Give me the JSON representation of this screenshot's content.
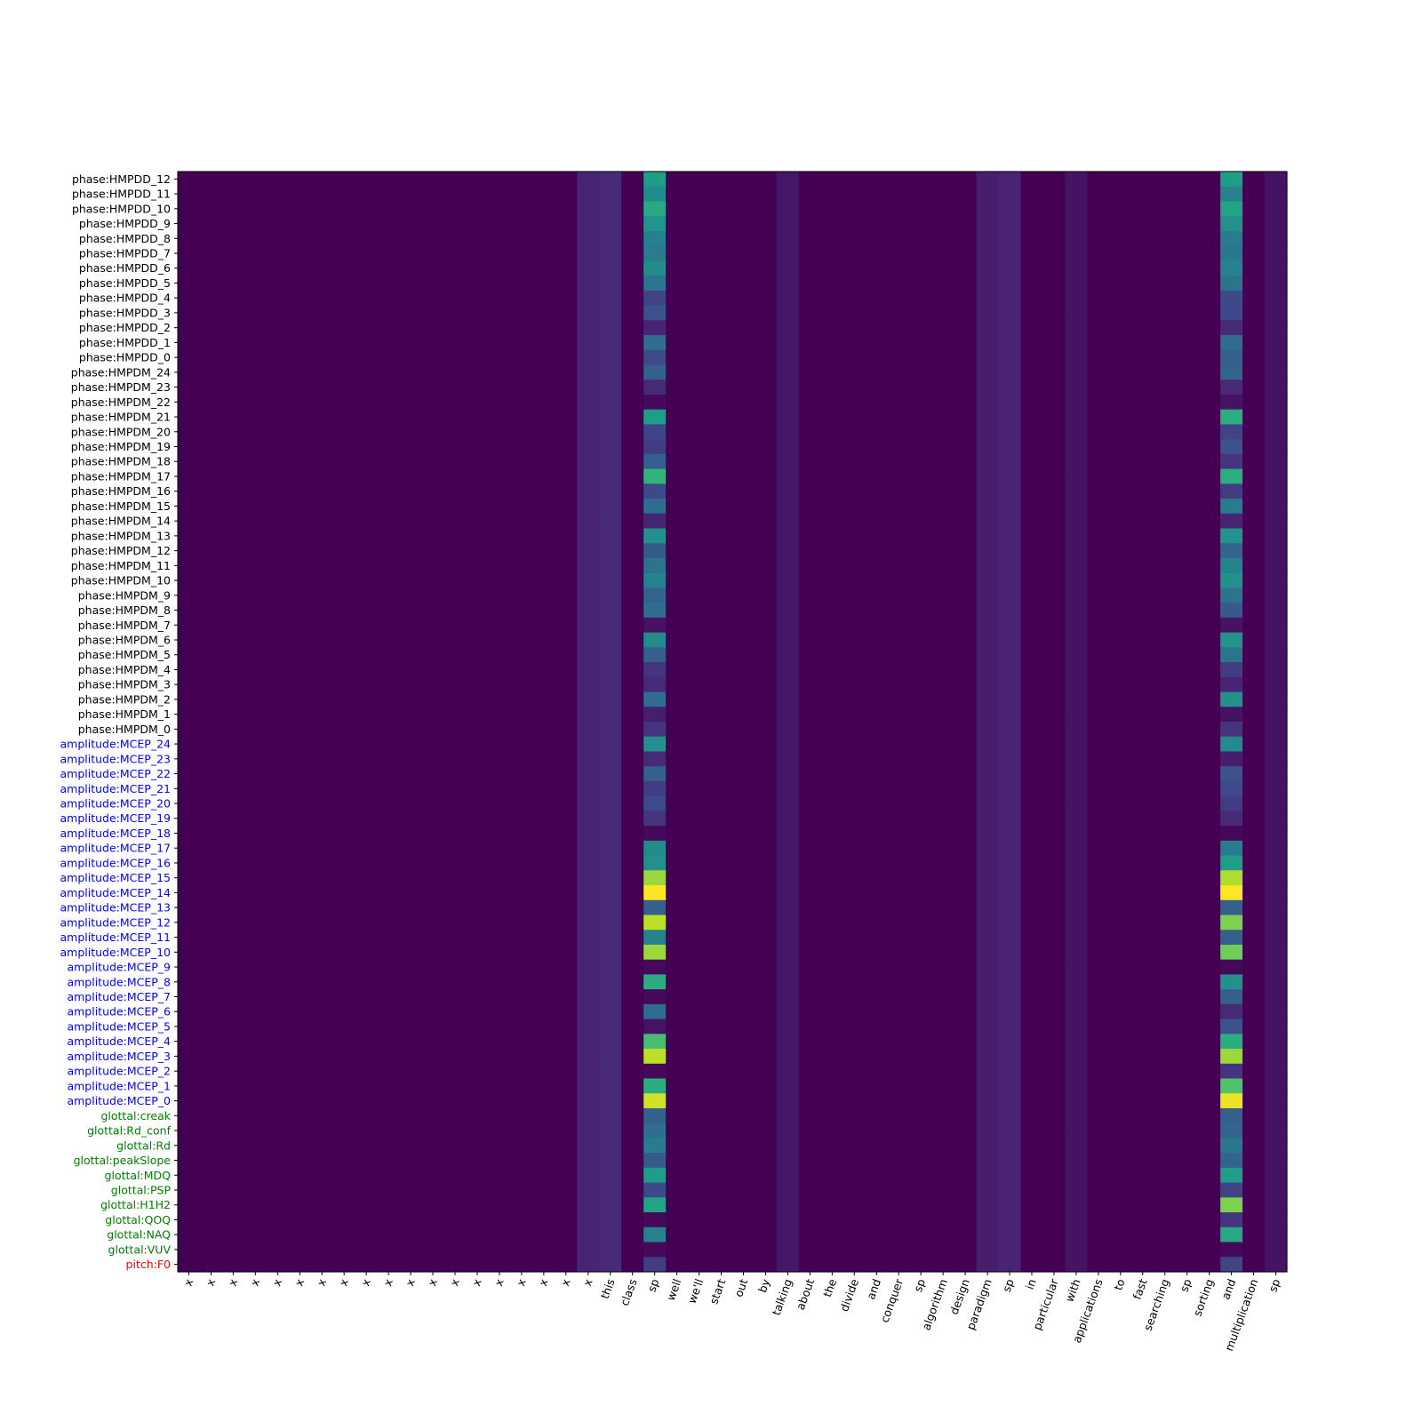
{
  "chart_data": {
    "type": "heatmap",
    "colormap": "viridis",
    "grid": false,
    "x_labels": [
      "x",
      "x",
      "x",
      "x",
      "x",
      "x",
      "x",
      "x",
      "x",
      "x",
      "x",
      "x",
      "x",
      "x",
      "x",
      "x",
      "x",
      "x",
      "x",
      "this",
      "class",
      "sp",
      "well",
      "we'll",
      "start",
      "out",
      "by",
      "talking",
      "about",
      "the",
      "divide",
      "and",
      "conquer",
      "sp",
      "algorithm",
      "design",
      "paradigm",
      "sp",
      "in",
      "particular",
      "with",
      "applications",
      "to",
      "fast",
      "searching",
      "sp",
      "sorting",
      "and",
      "multiplication",
      "sp"
    ],
    "y_labels": [
      "phase:HMPDD_12",
      "phase:HMPDD_11",
      "phase:HMPDD_10",
      "phase:HMPDD_9",
      "phase:HMPDD_8",
      "phase:HMPDD_7",
      "phase:HMPDD_6",
      "phase:HMPDD_5",
      "phase:HMPDD_4",
      "phase:HMPDD_3",
      "phase:HMPDD_2",
      "phase:HMPDD_1",
      "phase:HMPDD_0",
      "phase:HMPDM_24",
      "phase:HMPDM_23",
      "phase:HMPDM_22",
      "phase:HMPDM_21",
      "phase:HMPDM_20",
      "phase:HMPDM_19",
      "phase:HMPDM_18",
      "phase:HMPDM_17",
      "phase:HMPDM_16",
      "phase:HMPDM_15",
      "phase:HMPDM_14",
      "phase:HMPDM_13",
      "phase:HMPDM_12",
      "phase:HMPDM_11",
      "phase:HMPDM_10",
      "phase:HMPDM_9",
      "phase:HMPDM_8",
      "phase:HMPDM_7",
      "phase:HMPDM_6",
      "phase:HMPDM_5",
      "phase:HMPDM_4",
      "phase:HMPDM_3",
      "phase:HMPDM_2",
      "phase:HMPDM_1",
      "phase:HMPDM_0",
      "amplitude:MCEP_24",
      "amplitude:MCEP_23",
      "amplitude:MCEP_22",
      "amplitude:MCEP_21",
      "amplitude:MCEP_20",
      "amplitude:MCEP_19",
      "amplitude:MCEP_18",
      "amplitude:MCEP_17",
      "amplitude:MCEP_16",
      "amplitude:MCEP_15",
      "amplitude:MCEP_14",
      "amplitude:MCEP_13",
      "amplitude:MCEP_12",
      "amplitude:MCEP_11",
      "amplitude:MCEP_10",
      "amplitude:MCEP_9",
      "amplitude:MCEP_8",
      "amplitude:MCEP_7",
      "amplitude:MCEP_6",
      "amplitude:MCEP_5",
      "amplitude:MCEP_4",
      "amplitude:MCEP_3",
      "amplitude:MCEP_2",
      "amplitude:MCEP_1",
      "amplitude:MCEP_0",
      "glottal:creak",
      "glottal:Rd_conf",
      "glottal:Rd",
      "glottal:peakSlope",
      "glottal:MDQ",
      "glottal:PSP",
      "glottal:H1H2",
      "glottal:QOQ",
      "glottal:NAQ",
      "glottal:VUV",
      "pitch:F0"
    ],
    "y_label_colors": {
      "phase": "#000000",
      "amplitude": "#0000ff",
      "glottal": "#008000",
      "pitch": "#ff0000"
    },
    "value_range": [
      0,
      1
    ],
    "peak_columns": [
      {
        "x_index": 21,
        "values": [
          0.55,
          0.48,
          0.6,
          0.52,
          0.44,
          0.42,
          0.48,
          0.38,
          0.2,
          0.25,
          0.1,
          0.35,
          0.22,
          0.3,
          0.12,
          0.02,
          0.55,
          0.2,
          0.18,
          0.3,
          0.65,
          0.22,
          0.35,
          0.1,
          0.5,
          0.28,
          0.38,
          0.45,
          0.32,
          0.35,
          0.05,
          0.48,
          0.3,
          0.15,
          0.12,
          0.35,
          0.08,
          0.15,
          0.5,
          0.12,
          0.3,
          0.18,
          0.22,
          0.15,
          0.02,
          0.48,
          0.5,
          0.85,
          1.0,
          0.3,
          0.9,
          0.45,
          0.85,
          0.02,
          0.62,
          0.02,
          0.35,
          0.05,
          0.7,
          0.9,
          0.02,
          0.62,
          0.93,
          0.3,
          0.35,
          0.42,
          0.28,
          0.55,
          0.22,
          0.58,
          0.02,
          0.45,
          0.02,
          0.18
        ]
      },
      {
        "x_index": 47,
        "values": [
          0.55,
          0.45,
          0.58,
          0.5,
          0.42,
          0.4,
          0.45,
          0.38,
          0.22,
          0.22,
          0.12,
          0.35,
          0.3,
          0.32,
          0.12,
          0.05,
          0.62,
          0.2,
          0.25,
          0.15,
          0.62,
          0.18,
          0.42,
          0.1,
          0.52,
          0.32,
          0.45,
          0.5,
          0.38,
          0.28,
          0.05,
          0.52,
          0.38,
          0.18,
          0.1,
          0.5,
          0.05,
          0.15,
          0.48,
          0.08,
          0.25,
          0.22,
          0.18,
          0.12,
          0.02,
          0.42,
          0.55,
          0.88,
          1.0,
          0.3,
          0.8,
          0.3,
          0.78,
          0.02,
          0.5,
          0.3,
          0.12,
          0.25,
          0.62,
          0.85,
          0.15,
          0.72,
          0.97,
          0.3,
          0.32,
          0.4,
          0.32,
          0.55,
          0.2,
          0.8,
          0.15,
          0.6,
          0.02,
          0.2
        ]
      }
    ],
    "weak_columns": [
      {
        "x_index": 18,
        "value": 0.1
      },
      {
        "x_index": 19,
        "value": 0.12
      },
      {
        "x_index": 27,
        "value": 0.06
      },
      {
        "x_index": 36,
        "value": 0.08
      },
      {
        "x_index": 37,
        "value": 0.1
      },
      {
        "x_index": 40,
        "value": 0.05
      },
      {
        "x_index": 49,
        "value": 0.05
      }
    ]
  }
}
